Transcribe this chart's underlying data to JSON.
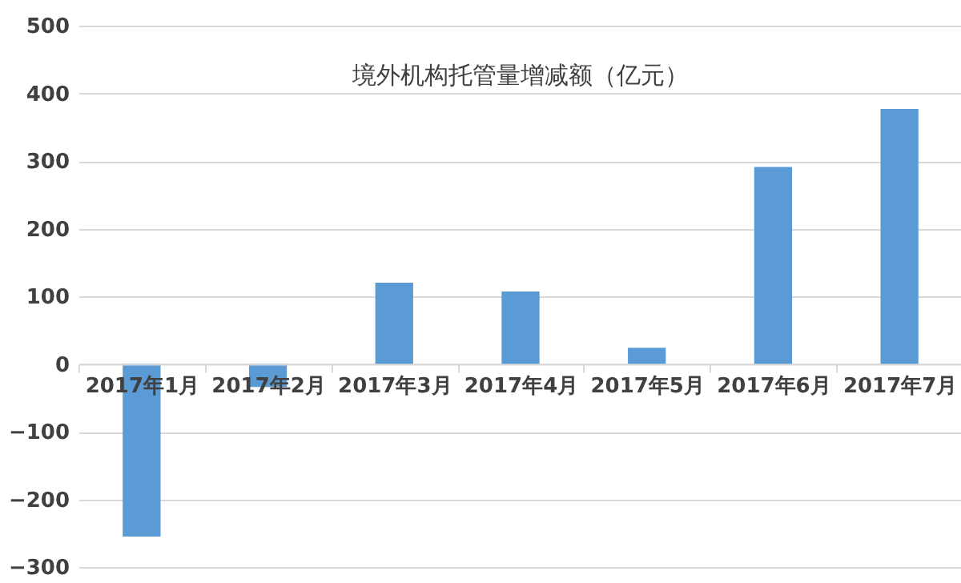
{
  "chart_data": {
    "type": "bar",
    "title": "境外机构托管量增减额（亿元）",
    "categories": [
      "2017年1月",
      "2017年2月",
      "2017年3月",
      "2017年4月",
      "2017年5月",
      "2017年6月",
      "2017年7月"
    ],
    "values": [
      -255,
      -34,
      120,
      107,
      24,
      291,
      377
    ],
    "color": "#5b9bd5",
    "ylim": [
      -300,
      500
    ],
    "yticks": [
      -300,
      -200,
      -100,
      0,
      100,
      200,
      300,
      400,
      500
    ],
    "grid": "y"
  }
}
